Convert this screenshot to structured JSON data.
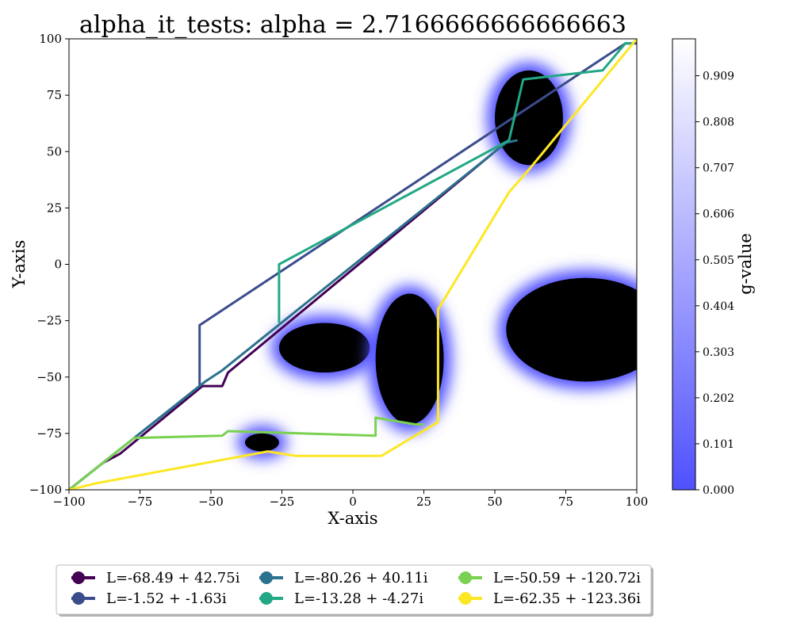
{
  "chart_data": {
    "type": "line",
    "title": "alpha_it_tests: alpha = 2.7166666666666663",
    "xlabel": "X-axis",
    "ylabel": "Y-axis",
    "xlim": [
      -100,
      100
    ],
    "ylim": [
      -100,
      100
    ],
    "x_ticks": [
      "−100",
      "−75",
      "−50",
      "−25",
      "0",
      "25",
      "50",
      "75",
      "100"
    ],
    "y_ticks": [
      "−100",
      "−75",
      "−50",
      "−25",
      "0",
      "25",
      "50",
      "75",
      "100"
    ],
    "grid": false,
    "colorbar": {
      "label": "g-value",
      "min": 0.0,
      "max": 0.99,
      "ticks": [
        "0.000",
        "0.101",
        "0.202",
        "0.303",
        "0.404",
        "0.505",
        "0.606",
        "0.707",
        "0.808",
        "0.909"
      ],
      "color_low": "#5050ff",
      "color_high": "#ffffff"
    },
    "obstacles": [
      {
        "cx": -10,
        "cy": -37,
        "rx": 16,
        "ry": 11
      },
      {
        "cx": 20,
        "cy": -42,
        "rx": 12,
        "ry": 29
      },
      {
        "cx": 62,
        "cy": 65,
        "rx": 12,
        "ry": 21
      },
      {
        "cx": 82,
        "cy": -29,
        "rx": 28,
        "ry": 23
      },
      {
        "cx": -32,
        "cy": -79,
        "rx": 6,
        "ry": 4
      }
    ],
    "legend_location": "below plot",
    "series": [
      {
        "name": "L=-68.49 + 42.75i",
        "color": "#440154",
        "points": [
          [
            -100,
            -100
          ],
          [
            -88,
            -88
          ],
          [
            -82,
            -84
          ],
          [
            -53,
            -54
          ],
          [
            -46,
            -54
          ],
          [
            -44,
            -48
          ],
          [
            51,
            51
          ],
          [
            55,
            55
          ]
        ]
      },
      {
        "name": "L=-1.52 + -1.63i",
        "color": "#3b4c8c",
        "points": [
          [
            -100,
            -100
          ],
          [
            -54,
            -54
          ],
          [
            -54,
            -27
          ],
          [
            96,
            98
          ],
          [
            100,
            98
          ]
        ]
      },
      {
        "name": "L=-80.26 + 40.11i",
        "color": "#2c728e",
        "points": [
          [
            -96,
            -96
          ],
          [
            -52,
            -52
          ],
          [
            -46,
            -47
          ],
          [
            54,
            54
          ],
          [
            58,
            55
          ]
        ]
      },
      {
        "name": "L=-13.28 + -4.27i",
        "color": "#22a884",
        "points": [
          [
            -26,
            -26
          ],
          [
            -26,
            0
          ],
          [
            55,
            55
          ],
          [
            60,
            82
          ],
          [
            88,
            86
          ],
          [
            96,
            98
          ],
          [
            99,
            98
          ]
        ]
      },
      {
        "name": "L=-50.59 + -120.72i",
        "color": "#7ad151",
        "points": [
          [
            -100,
            -100
          ],
          [
            -77,
            -77
          ],
          [
            -46,
            -76
          ],
          [
            -44,
            -74
          ],
          [
            8,
            -76
          ],
          [
            8,
            -68
          ],
          [
            22,
            -71
          ],
          [
            25,
            -71
          ]
        ]
      },
      {
        "name": "L=-62.35 + -123.36i",
        "color": "#fde725",
        "points": [
          [
            -100,
            -100
          ],
          [
            -90,
            -97
          ],
          [
            -30,
            -83
          ],
          [
            -20,
            -85
          ],
          [
            10,
            -85
          ],
          [
            30,
            -70
          ],
          [
            30,
            -20
          ],
          [
            55,
            32
          ],
          [
            62,
            42
          ],
          [
            100,
            100
          ]
        ]
      }
    ]
  }
}
